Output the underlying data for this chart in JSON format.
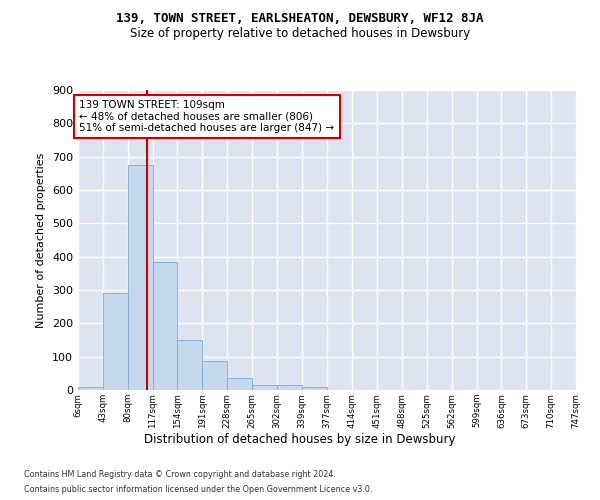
{
  "title": "139, TOWN STREET, EARLSHEATON, DEWSBURY, WF12 8JA",
  "subtitle": "Size of property relative to detached houses in Dewsbury",
  "xlabel": "Distribution of detached houses by size in Dewsbury",
  "ylabel": "Number of detached properties",
  "bar_values": [
    10,
    290,
    675,
    385,
    150,
    87,
    37,
    15,
    15,
    10,
    0,
    0,
    0,
    0,
    0,
    0,
    0,
    0,
    0,
    0
  ],
  "bin_edges": [
    6,
    43,
    80,
    117,
    154,
    191,
    228,
    265,
    302,
    339,
    377,
    414,
    451,
    488,
    525,
    562,
    599,
    636,
    673,
    710,
    747
  ],
  "x_tick_labels": [
    "6sqm",
    "43sqm",
    "80sqm",
    "117sqm",
    "154sqm",
    "191sqm",
    "228sqm",
    "265sqm",
    "302sqm",
    "339sqm",
    "377sqm",
    "414sqm",
    "451sqm",
    "488sqm",
    "525sqm",
    "562sqm",
    "599sqm",
    "636sqm",
    "673sqm",
    "710sqm",
    "747sqm"
  ],
  "bar_color": "#c5d8ee",
  "bar_edge_color": "#7aadd4",
  "red_line_x": 109,
  "annotation_line1": "139 TOWN STREET: 109sqm",
  "annotation_line2": "← 48% of detached houses are smaller (806)",
  "annotation_line3": "51% of semi-detached houses are larger (847) →",
  "annotation_box_color": "#ffffff",
  "annotation_box_edge": "#cc0000",
  "ylim": [
    0,
    900
  ],
  "yticks": [
    0,
    100,
    200,
    300,
    400,
    500,
    600,
    700,
    800,
    900
  ],
  "background_color": "#dde4f0",
  "grid_color": "#ffffff",
  "fig_bg_color": "#ffffff",
  "footer_line1": "Contains HM Land Registry data © Crown copyright and database right 2024.",
  "footer_line2": "Contains public sector information licensed under the Open Government Licence v3.0."
}
